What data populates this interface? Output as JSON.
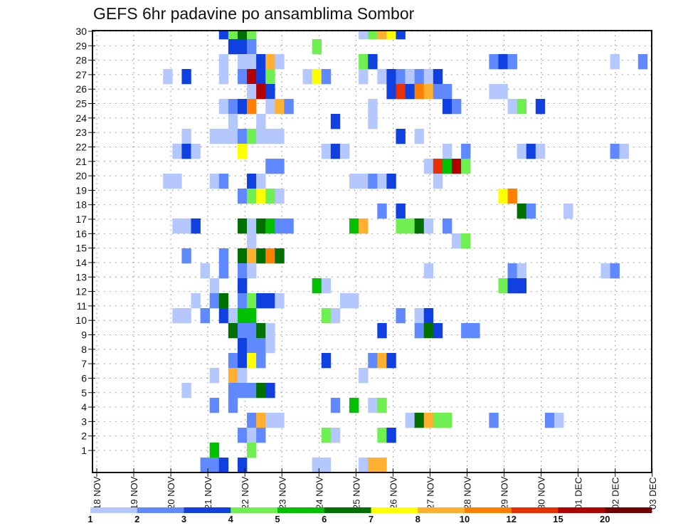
{
  "chart_data": {
    "type": "heatmap",
    "title": "GEFS 6hr padavine po ansamblima Sombor",
    "xlabel": "",
    "ylabel": "",
    "x_step": "6hr",
    "x_tick_labels": [
      "18 NOV",
      "19 NOV",
      "20 NOV",
      "21 NOV",
      "22 NOV",
      "23 NOV",
      "24 NOV",
      "25 NOV",
      "26 NOV",
      "27 NOV",
      "28 NOV",
      "29 NOV",
      "30 NOV",
      "01 DEC",
      "02 DEC",
      "03 DEC"
    ],
    "y_tick_labels": [
      "1",
      "2",
      "3",
      "4",
      "5",
      "6",
      "7",
      "8",
      "9",
      "10",
      "11",
      "12",
      "13",
      "14",
      "15",
      "16",
      "17",
      "18",
      "19",
      "20",
      "21",
      "22",
      "23",
      "24",
      "25",
      "26",
      "27",
      "28",
      "29",
      "30"
    ],
    "grid": true,
    "colorbar": {
      "placement": "bottom",
      "labels": [
        "1",
        "2",
        "3",
        "4",
        "5",
        "6",
        "7",
        "8",
        "10",
        "12",
        "15",
        "20"
      ],
      "colors": [
        "#b4c8ff",
        "#6088ff",
        "#1040e0",
        "#70f050",
        "#00c000",
        "#007000",
        "#ffff00",
        "#ffb030",
        "#ff8000",
        "#e83000",
        "#b00000",
        "#700000"
      ]
    },
    "cells_format": "[member, 6hr step index from 18 NOV 00Z, colour bin index]",
    "cells": [
      [
        30,
        13,
        2
      ],
      [
        30,
        14,
        3
      ],
      [
        30,
        15,
        5
      ],
      [
        30,
        16,
        3
      ],
      [
        30,
        28,
        0
      ],
      [
        30,
        29,
        3
      ],
      [
        30,
        30,
        7
      ],
      [
        30,
        31,
        6
      ],
      [
        30,
        32,
        2
      ],
      [
        29,
        14,
        2
      ],
      [
        29,
        15,
        2
      ],
      [
        29,
        16,
        1
      ],
      [
        29,
        23,
        3
      ],
      [
        28,
        13,
        0
      ],
      [
        28,
        15,
        0
      ],
      [
        28,
        16,
        0
      ],
      [
        28,
        17,
        2
      ],
      [
        28,
        18,
        7
      ],
      [
        28,
        19,
        0
      ],
      [
        28,
        28,
        3
      ],
      [
        28,
        29,
        2
      ],
      [
        28,
        42,
        1
      ],
      [
        28,
        43,
        2
      ],
      [
        28,
        44,
        1
      ],
      [
        28,
        55,
        0
      ],
      [
        28,
        58,
        1
      ],
      [
        27,
        7,
        0
      ],
      [
        27,
        9,
        2
      ],
      [
        27,
        13,
        0
      ],
      [
        27,
        15,
        1
      ],
      [
        27,
        16,
        10
      ],
      [
        27,
        17,
        2
      ],
      [
        27,
        18,
        3
      ],
      [
        27,
        22,
        0
      ],
      [
        27,
        23,
        6
      ],
      [
        27,
        24,
        1
      ],
      [
        27,
        28,
        0
      ],
      [
        27,
        30,
        0
      ],
      [
        27,
        31,
        2
      ],
      [
        27,
        32,
        1
      ],
      [
        27,
        33,
        0
      ],
      [
        27,
        34,
        1
      ],
      [
        27,
        35,
        0
      ],
      [
        27,
        36,
        2
      ],
      [
        26,
        16,
        0
      ],
      [
        26,
        17,
        10
      ],
      [
        26,
        18,
        2
      ],
      [
        26,
        31,
        2
      ],
      [
        26,
        32,
        9
      ],
      [
        26,
        33,
        2
      ],
      [
        26,
        34,
        8
      ],
      [
        26,
        35,
        7
      ],
      [
        26,
        36,
        1
      ],
      [
        26,
        37,
        1
      ],
      [
        26,
        42,
        0
      ],
      [
        26,
        43,
        0
      ],
      [
        25,
        13,
        0
      ],
      [
        25,
        14,
        1
      ],
      [
        25,
        15,
        2
      ],
      [
        25,
        16,
        8
      ],
      [
        25,
        18,
        0
      ],
      [
        25,
        19,
        7
      ],
      [
        25,
        20,
        1
      ],
      [
        25,
        29,
        0
      ],
      [
        25,
        37,
        2
      ],
      [
        25,
        38,
        1
      ],
      [
        25,
        44,
        0
      ],
      [
        25,
        45,
        3
      ],
      [
        25,
        47,
        2
      ],
      [
        24,
        14,
        0
      ],
      [
        24,
        17,
        0
      ],
      [
        24,
        25,
        2
      ],
      [
        24,
        29,
        0
      ],
      [
        23,
        9,
        0
      ],
      [
        23,
        12,
        0
      ],
      [
        23,
        13,
        0
      ],
      [
        23,
        14,
        0
      ],
      [
        23,
        15,
        1
      ],
      [
        23,
        16,
        3
      ],
      [
        23,
        17,
        0
      ],
      [
        23,
        18,
        0
      ],
      [
        23,
        19,
        0
      ],
      [
        23,
        32,
        2
      ],
      [
        23,
        34,
        0
      ],
      [
        22,
        8,
        0
      ],
      [
        22,
        9,
        2
      ],
      [
        22,
        10,
        0
      ],
      [
        22,
        15,
        6
      ],
      [
        22,
        24,
        0
      ],
      [
        22,
        25,
        2
      ],
      [
        22,
        26,
        0
      ],
      [
        22,
        37,
        0
      ],
      [
        22,
        39,
        1
      ],
      [
        22,
        45,
        0
      ],
      [
        22,
        46,
        2
      ],
      [
        22,
        47,
        0
      ],
      [
        22,
        55,
        1
      ],
      [
        22,
        56,
        0
      ],
      [
        21,
        18,
        1
      ],
      [
        21,
        19,
        1
      ],
      [
        21,
        35,
        0
      ],
      [
        21,
        36,
        9
      ],
      [
        21,
        37,
        4
      ],
      [
        21,
        38,
        10
      ],
      [
        21,
        39,
        3
      ],
      [
        20,
        7,
        0
      ],
      [
        20,
        8,
        0
      ],
      [
        20,
        12,
        0
      ],
      [
        20,
        13,
        1
      ],
      [
        20,
        16,
        2
      ],
      [
        20,
        17,
        0
      ],
      [
        20,
        27,
        0
      ],
      [
        20,
        28,
        0
      ],
      [
        20,
        29,
        1
      ],
      [
        20,
        30,
        0
      ],
      [
        20,
        31,
        2
      ],
      [
        20,
        36,
        0
      ],
      [
        19,
        15,
        1
      ],
      [
        19,
        16,
        3
      ],
      [
        19,
        17,
        6
      ],
      [
        19,
        18,
        3
      ],
      [
        19,
        19,
        0
      ],
      [
        19,
        43,
        6
      ],
      [
        19,
        44,
        8
      ],
      [
        18,
        30,
        1
      ],
      [
        18,
        32,
        2
      ],
      [
        18,
        45,
        5
      ],
      [
        18,
        46,
        1
      ],
      [
        18,
        50,
        0
      ],
      [
        17,
        8,
        0
      ],
      [
        17,
        9,
        0
      ],
      [
        17,
        10,
        2
      ],
      [
        17,
        15,
        5
      ],
      [
        17,
        16,
        0
      ],
      [
        17,
        17,
        5
      ],
      [
        17,
        18,
        4
      ],
      [
        17,
        19,
        1
      ],
      [
        17,
        20,
        1
      ],
      [
        17,
        27,
        4
      ],
      [
        17,
        28,
        7
      ],
      [
        17,
        32,
        3
      ],
      [
        17,
        33,
        3
      ],
      [
        17,
        34,
        5
      ],
      [
        17,
        35,
        0
      ],
      [
        17,
        37,
        1
      ],
      [
        16,
        16,
        0
      ],
      [
        16,
        38,
        0
      ],
      [
        16,
        39,
        3
      ],
      [
        15,
        9,
        1
      ],
      [
        15,
        13,
        1
      ],
      [
        15,
        15,
        5
      ],
      [
        15,
        16,
        7
      ],
      [
        15,
        17,
        5
      ],
      [
        15,
        18,
        8
      ],
      [
        15,
        19,
        5
      ],
      [
        14,
        11,
        0
      ],
      [
        14,
        13,
        1
      ],
      [
        14,
        15,
        1
      ],
      [
        14,
        16,
        0
      ],
      [
        14,
        35,
        0
      ],
      [
        14,
        44,
        1
      ],
      [
        14,
        45,
        0
      ],
      [
        14,
        54,
        0
      ],
      [
        14,
        55,
        1
      ],
      [
        13,
        12,
        0
      ],
      [
        13,
        15,
        2
      ],
      [
        13,
        23,
        4
      ],
      [
        13,
        24,
        0
      ],
      [
        13,
        43,
        3
      ],
      [
        13,
        44,
        2
      ],
      [
        13,
        45,
        2
      ],
      [
        12,
        10,
        0
      ],
      [
        12,
        12,
        1
      ],
      [
        12,
        13,
        5
      ],
      [
        12,
        15,
        1
      ],
      [
        12,
        16,
        3
      ],
      [
        12,
        17,
        2
      ],
      [
        12,
        18,
        2
      ],
      [
        12,
        19,
        0
      ],
      [
        12,
        26,
        0
      ],
      [
        12,
        27,
        0
      ],
      [
        11,
        8,
        0
      ],
      [
        11,
        9,
        0
      ],
      [
        11,
        11,
        1
      ],
      [
        11,
        13,
        2
      ],
      [
        11,
        14,
        0
      ],
      [
        11,
        15,
        4
      ],
      [
        11,
        16,
        4
      ],
      [
        11,
        24,
        3
      ],
      [
        11,
        25,
        0
      ],
      [
        11,
        32,
        1
      ],
      [
        11,
        34,
        0
      ],
      [
        11,
        35,
        2
      ],
      [
        10,
        14,
        5
      ],
      [
        10,
        15,
        1
      ],
      [
        10,
        16,
        1
      ],
      [
        10,
        17,
        5
      ],
      [
        10,
        18,
        0
      ],
      [
        10,
        30,
        2
      ],
      [
        10,
        34,
        1
      ],
      [
        10,
        35,
        5
      ],
      [
        10,
        36,
        2
      ],
      [
        10,
        39,
        1
      ],
      [
        10,
        40,
        1
      ],
      [
        9,
        15,
        2
      ],
      [
        9,
        16,
        1
      ],
      [
        9,
        17,
        1
      ],
      [
        9,
        18,
        0
      ],
      [
        8,
        14,
        1
      ],
      [
        8,
        15,
        2
      ],
      [
        8,
        16,
        6
      ],
      [
        8,
        17,
        1
      ],
      [
        8,
        24,
        2
      ],
      [
        8,
        29,
        1
      ],
      [
        8,
        30,
        7
      ],
      [
        8,
        31,
        2
      ],
      [
        7,
        12,
        0
      ],
      [
        7,
        14,
        7
      ],
      [
        7,
        15,
        0
      ],
      [
        7,
        28,
        0
      ],
      [
        6,
        9,
        0
      ],
      [
        6,
        14,
        1
      ],
      [
        6,
        15,
        1
      ],
      [
        6,
        16,
        1
      ],
      [
        6,
        17,
        5
      ],
      [
        6,
        18,
        2
      ],
      [
        5,
        12,
        1
      ],
      [
        5,
        14,
        1
      ],
      [
        5,
        25,
        1
      ],
      [
        5,
        27,
        4
      ],
      [
        5,
        29,
        0
      ],
      [
        5,
        30,
        3
      ],
      [
        4,
        16,
        1
      ],
      [
        4,
        17,
        7
      ],
      [
        4,
        18,
        0
      ],
      [
        4,
        19,
        0
      ],
      [
        4,
        33,
        0
      ],
      [
        4,
        34,
        5
      ],
      [
        4,
        35,
        7
      ],
      [
        4,
        36,
        3
      ],
      [
        4,
        37,
        3
      ],
      [
        4,
        42,
        1
      ],
      [
        4,
        48,
        1
      ],
      [
        4,
        49,
        0
      ],
      [
        3,
        15,
        1
      ],
      [
        3,
        16,
        0
      ],
      [
        3,
        17,
        1
      ],
      [
        3,
        24,
        3
      ],
      [
        3,
        25,
        0
      ],
      [
        3,
        30,
        3
      ],
      [
        3,
        31,
        2
      ],
      [
        2,
        12,
        4
      ],
      [
        2,
        16,
        3
      ],
      [
        1,
        11,
        1
      ],
      [
        1,
        12,
        1
      ],
      [
        1,
        13,
        2
      ],
      [
        1,
        15,
        2
      ],
      [
        1,
        23,
        0
      ],
      [
        1,
        24,
        0
      ],
      [
        1,
        28,
        0
      ],
      [
        1,
        29,
        7
      ],
      [
        1,
        30,
        7
      ]
    ]
  }
}
